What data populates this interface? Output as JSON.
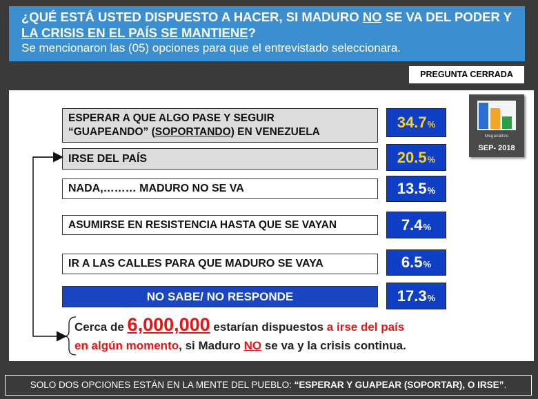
{
  "header": {
    "q_part1": "¿QUÉ ESTÁ USTED DISPUESTO A HACER, SI MADURO ",
    "q_no": "NO",
    "q_part2": " SE VA DEL PODER Y",
    "q_line2": "LA CRISIS EN EL PAÍS SE MANTIENE",
    "q_mark": "?",
    "subtitle": "Se mencionaron las (05) opciones para que el entrevistado seleccionara."
  },
  "tag": "PREGUNTA CERRADA",
  "logo": {
    "name": "Meganálisis",
    "date": "SEP- 2018"
  },
  "chart_data": {
    "type": "bar",
    "categories": [
      "ESPERAR A QUE ALGO PASE Y SEGUIR “GUAPEANDO” (SOPORTANDO) EN VENEZUELA",
      "IRSE DEL PAÍS",
      "NADA,……… MADURO NO SE VA",
      "ASUMIRSE EN RESISTENCIA HASTA QUE SE VAYAN",
      "IR A LAS CALLES PARA QUE MADURO SE VAYA",
      "NO SABE/ NO RESPONDE"
    ],
    "values": [
      34.7,
      20.5,
      13.5,
      7.4,
      6.5,
      17.3
    ],
    "value_labels": [
      "34.7",
      "20.5",
      "13.5",
      "7.4",
      "6.5",
      "17.3"
    ],
    "unit": "%"
  },
  "options": {
    "o1_line1": "ESPERAR A QUE ALGO PASE Y SEGUIR",
    "o1_line2a": "“GUAPEANDO” (",
    "o1_line2b": "SOPORTANDO",
    "o1_line2c": ") EN VENEZUELA"
  },
  "note": {
    "a": "Cerca de ",
    "b": "6,000,000",
    "c": " estarían dispuestos ",
    "d": "a irse del país",
    "e": "en algún momento",
    "f": ", si Maduro ",
    "g": "NO",
    "h": " se va y la crisis continua."
  },
  "footer": {
    "a": "SOLO DOS OPCIONES ESTÁN EN LA MENTE DEL PUEBLO: ",
    "b": "“ESPERAR Y GUAPEAR (SOPORTAR), O IRSE”",
    "c": "."
  },
  "colors": {
    "header": "#3b8fd0",
    "value_box": "#0f3fc4",
    "highlight": "#ffd21a",
    "red": "#e11111"
  }
}
